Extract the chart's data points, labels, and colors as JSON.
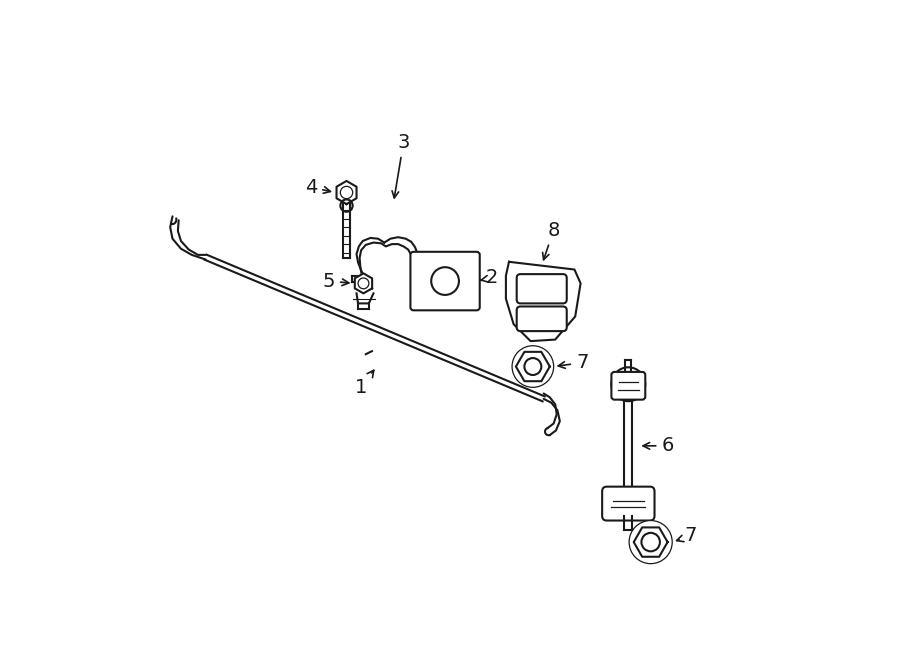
{
  "bg_color": "#ffffff",
  "lc": "#1a1a1a",
  "figsize": [
    9.0,
    6.61
  ],
  "dpi": 100,
  "lw": 1.5,
  "label_fontsize": 14
}
